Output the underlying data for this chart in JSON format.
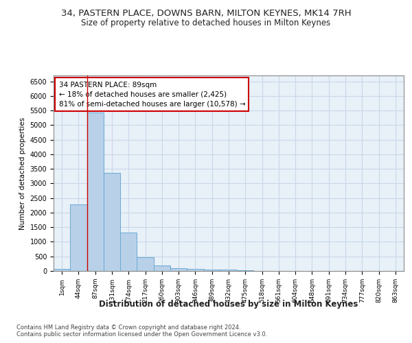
{
  "title_line1": "34, PASTERN PLACE, DOWNS BARN, MILTON KEYNES, MK14 7RH",
  "title_line2": "Size of property relative to detached houses in Milton Keynes",
  "xlabel": "Distribution of detached houses by size in Milton Keynes",
  "ylabel": "Number of detached properties",
  "footer_line1": "Contains HM Land Registry data © Crown copyright and database right 2024.",
  "footer_line2": "Contains public sector information licensed under the Open Government Licence v3.0.",
  "bar_labels": [
    "1sqm",
    "44sqm",
    "87sqm",
    "131sqm",
    "174sqm",
    "217sqm",
    "260sqm",
    "303sqm",
    "346sqm",
    "389sqm",
    "432sqm",
    "475sqm",
    "518sqm",
    "561sqm",
    "604sqm",
    "648sqm",
    "691sqm",
    "734sqm",
    "777sqm",
    "820sqm",
    "863sqm"
  ],
  "bar_values": [
    75,
    2280,
    5430,
    3370,
    1310,
    480,
    190,
    95,
    60,
    50,
    40,
    35,
    10,
    5,
    5,
    2,
    2,
    1,
    1,
    1,
    1
  ],
  "bar_color": "#b8d0e8",
  "bar_edge_color": "#6aaad4",
  "grid_color": "#c8d8e8",
  "plot_bg_color": "#e8f0f8",
  "fig_bg_color": "#ffffff",
  "vline_x_index": 2,
  "vline_color": "#cc0000",
  "annotation_line1": "34 PASTERN PLACE: 89sqm",
  "annotation_line2": "← 18% of detached houses are smaller (2,425)",
  "annotation_line3": "81% of semi-detached houses are larger (10,578) →",
  "annotation_box_color": "#ffffff",
  "annotation_box_edge_color": "#cc0000",
  "ylim": [
    0,
    6700
  ],
  "yticks": [
    0,
    500,
    1000,
    1500,
    2000,
    2500,
    3000,
    3500,
    4000,
    4500,
    5000,
    5500,
    6000,
    6500
  ]
}
